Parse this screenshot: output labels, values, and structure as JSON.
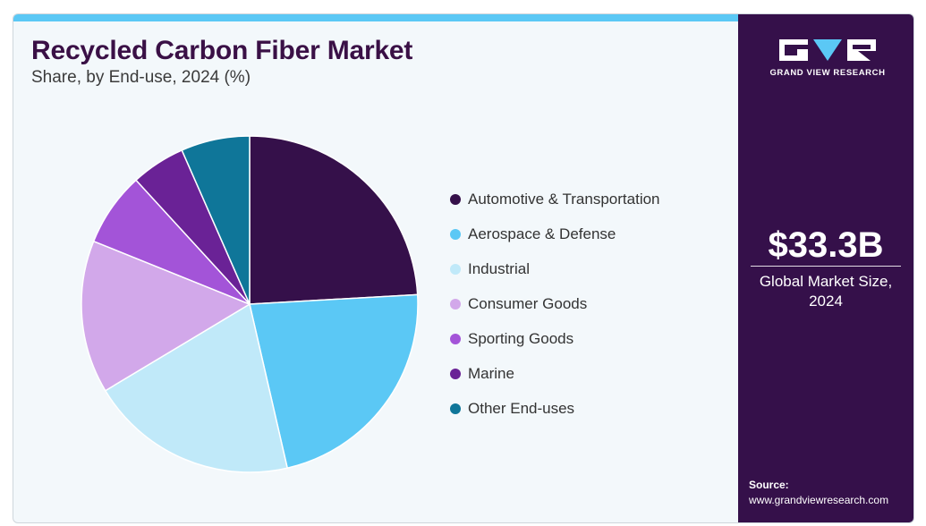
{
  "header": {
    "title": "Recycled Carbon Fiber Market",
    "subtitle": "Share, by End-use, 2024 (%)"
  },
  "brand": {
    "name": "GRAND VIEW RESEARCH",
    "logo_icon": "gvr-logo-icon"
  },
  "market": {
    "value": "$33.3B",
    "caption_line1": "Global Market Size,",
    "caption_line2": "2024"
  },
  "source": {
    "label": "Source:",
    "url": "www.grandviewresearch.com"
  },
  "colors": {
    "accent_bar": "#5bc8f5",
    "sidebar": "#35104a",
    "title": "#3a1046"
  },
  "chart_data": {
    "type": "pie",
    "title": "Recycled Carbon Fiber Market",
    "subtitle": "Share, by End-use, 2024 (%)",
    "legend_position": "right",
    "start": "12 o'clock, clockwise",
    "categories": [
      "Automotive & Transportation",
      "Aerospace & Defense",
      "Industrial",
      "Consumer Goods",
      "Sporting Goods",
      "Marine",
      "Other End-uses"
    ],
    "values": [
      24.1,
      22.3,
      20.0,
      14.7,
      7.1,
      5.2,
      6.6
    ],
    "colors": [
      "#35104a",
      "#5bc8f5",
      "#c0e9f9",
      "#d2a8ea",
      "#a354d8",
      "#6a2296",
      "#0f7699"
    ]
  }
}
